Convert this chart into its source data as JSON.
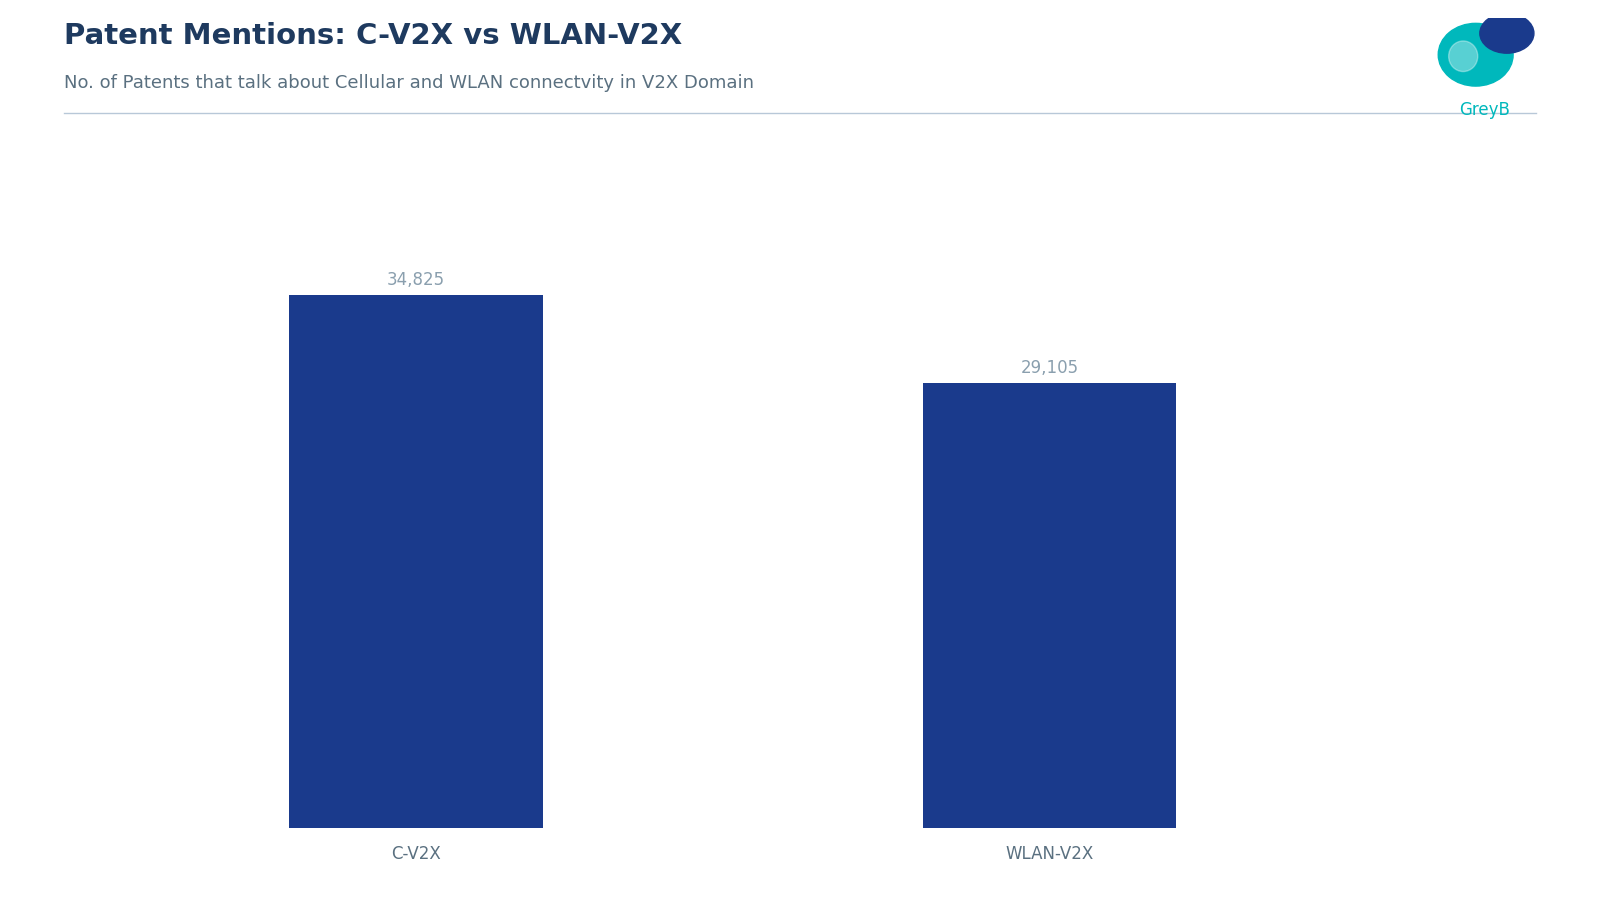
{
  "title": "Patent Mentions: C-V2X vs WLAN-V2X",
  "subtitle": "No. of Patents that talk about Cellular and WLAN connectvity in V2X Domain",
  "categories": [
    "C-V2X",
    "WLAN-V2X"
  ],
  "values": [
    34825,
    29105
  ],
  "labels": [
    "34,825",
    "29,105"
  ],
  "bar_color": "#1a3a8c",
  "title_color": "#1e3a5f",
  "subtitle_color": "#5a7080",
  "label_color": "#8a9fae",
  "xticklabel_color": "#5a7080",
  "separator_color": "#b8c8d8",
  "background_color": "#ffffff",
  "ylim": [
    0,
    40000
  ],
  "bar_width": 0.18,
  "x_positions": [
    0.25,
    0.7
  ],
  "title_fontsize": 21,
  "subtitle_fontsize": 13,
  "label_fontsize": 12,
  "xtick_fontsize": 12,
  "greyb_text": "GreyB",
  "greyb_color": "#00b8bc",
  "teal_color": "#00b8bc",
  "navy_color": "#1a3a8c"
}
